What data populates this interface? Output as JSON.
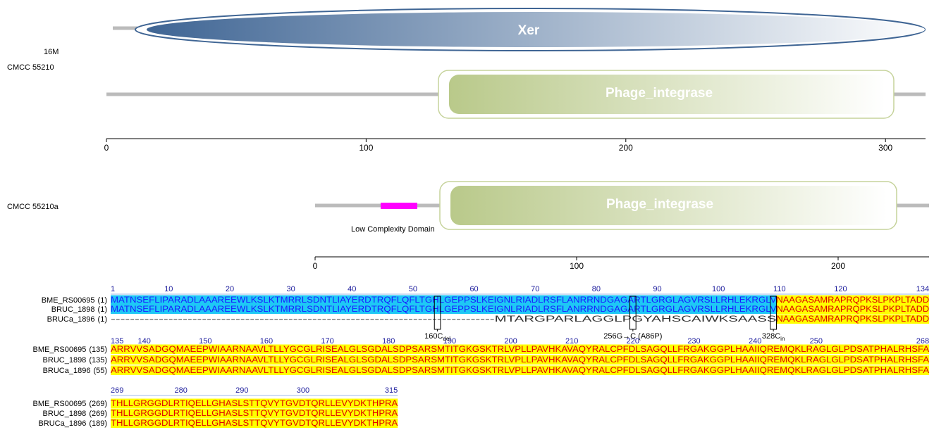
{
  "maps": [
    {
      "strain_labels": [
        "16M",
        "CMCC  55210"
      ],
      "domains": [
        "Xer",
        "Phage_integrase"
      ],
      "axis_ticks": [
        0,
        100,
        200,
        300
      ]
    },
    {
      "strain_labels": [
        "CMCC  55210a"
      ],
      "domains": [
        "Phage_integrase"
      ],
      "region_label": "Low Complexity Domain",
      "axis_ticks": [
        0,
        100,
        200
      ]
    }
  ],
  "alignment": {
    "blocks": [
      {
        "ruler": [
          1,
          10,
          20,
          30,
          40,
          50,
          60,
          70,
          80,
          90,
          100,
          110,
          120,
          134
        ],
        "rows": [
          {
            "name": "BME_RS00695",
            "start": "(1)",
            "segments": [
              {
                "text": "MATNSEFLIPARADLAAAREEWLKSLKTMRRLSDNTLIAYERDTRQFLQFLTGHLGEPPSLKEIGNLRIADLRSFLANRRNDGAGARTLGRGLAGVRSLLRHLEKRGLV",
                "color": "cyan"
              },
              {
                "text": "NAAGASAMRAPRQPKSLPKPLTADD",
                "color": "yellow"
              }
            ]
          },
          {
            "name": "BRUC_1898",
            "start": "(1)",
            "segments": [
              {
                "text": "MATNSEFLIPARADLAAAREEWLKSLKTMRRLSDNTLIAYERDTRQFLQFLTGHLGEPPSLKEIGNLRIADLRSFLANRRNDGAGARTLGRGLAGVRSLLRHLEKRGLV",
                "color": "cyan"
              },
              {
                "text": "NAAGASAMRAPRQPKSLPKPLTADD",
                "color": "yellow"
              }
            ]
          },
          {
            "name": "BRUCa_1896",
            "start": "(1)",
            "segments": [
              {
                "text": "--------------------------------------------------------------------------------MTARGPARLAGGLPGYAHSCAIWKSAASS",
                "color": "none"
              },
              {
                "text": "NAAGASAMRAPRQPKSLPKPLTADD",
                "color": "yellow"
              }
            ]
          }
        ]
      },
      {
        "ruler": [
          135,
          140,
          150,
          160,
          170,
          180,
          190,
          200,
          210,
          220,
          230,
          240,
          250,
          268
        ],
        "rows": [
          {
            "name": "BME_RS00695",
            "start": "(135)",
            "segments": [
              {
                "text": "ARRVVSADGQMAEEPWIAARNAAVLTLLYGCGLRISEALGLSGDALSDPSARSMTITGKGSKTRLVPLLPAVHKAVAQYRALCPFDLSAGQLLFRGAKGGPLHAAIIQREMQKLRAGLGLPDSATPHALRHSFA",
                "color": "yellow"
              }
            ]
          },
          {
            "name": "BRUC_1898",
            "start": "(135)",
            "segments": [
              {
                "text": "ARRVVSADGQMAEEPWIAARNAAVLTLLYGCGLRISEALGLSGDALSDPSARSMTITGKGSKTRLVPLLPAVHKAVAQYRALCPFDLSAGQLLFRGAKGGPLHAAIIQREMQKLRAGLGLPDSATPHALRHSFA",
                "color": "yellow"
              }
            ]
          },
          {
            "name": "BRUCa_1896",
            "start": "(55)",
            "segments": [
              {
                "text": "ARRVVSADGQMAEEPWIAARNAAVLTLLYGCGLRISEALGLSGDALSDPSARSMTITGKGSKTRLVPLLPAVHKAVAQYRALCPFDLSAGQLLFRGAKGGPLHAAIIQREMQKLRAGLGLPDSATPHALRHSFA",
                "color": "yellow"
              }
            ]
          }
        ]
      },
      {
        "ruler": [
          269,
          280,
          290,
          300,
          315
        ],
        "rows": [
          {
            "name": "BME_RS00695",
            "start": "(269)",
            "segments": [
              {
                "text": "THLLGRGGDLRTIQELLGHASLSTTQVYTGVDTQRLLEVYDKTHPRA",
                "color": "yellow"
              }
            ]
          },
          {
            "name": "BRUC_1898",
            "start": "(269)",
            "segments": [
              {
                "text": "THLLGRGGDLRTIQELLGHASLSTTQVYTGVDTQRLLEVYDKTHPRA",
                "color": "yellow"
              }
            ]
          },
          {
            "name": "BRUCa_1896",
            "start": "(189)",
            "segments": [
              {
                "text": "THLLGRGGDLRTIQELLGHASLSTTQVYTGVDTQRLLEVYDKTHPRA",
                "color": "yellow"
              }
            ]
          }
        ]
      }
    ],
    "annotations": [
      {
        "text": "160C",
        "sub": "del"
      },
      {
        "text": "256G→C (A86P)"
      },
      {
        "text": "328C",
        "sub": "in"
      }
    ]
  }
}
